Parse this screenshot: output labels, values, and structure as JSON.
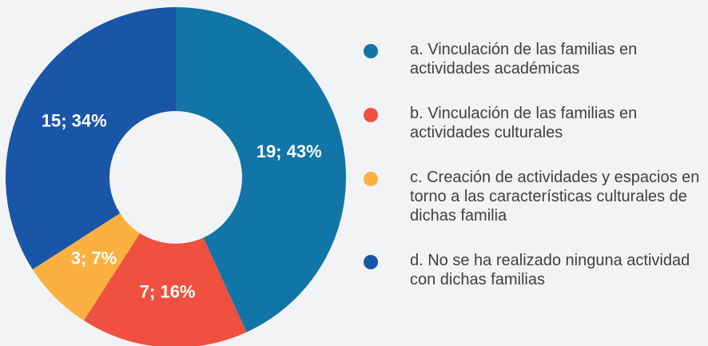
{
  "chart_data": {
    "type": "donut",
    "categories": [
      "a. Vinculación de las familias en actividades académicas",
      "b. Vinculación de las familias en actividades culturales",
      "c. Creación de actividades y espacios en torno a las características culturales de dichas familia",
      "d. No se ha realizado ninguna actividad con dichas familias"
    ],
    "values": [
      19,
      7,
      3,
      15
    ],
    "value_labels": [
      "19; 43%",
      "7; 16%",
      "3; 7%",
      "15; 34%"
    ],
    "colors": [
      "#1175a8",
      "#f0503f",
      "#fbb040",
      "#1a56a8"
    ]
  }
}
